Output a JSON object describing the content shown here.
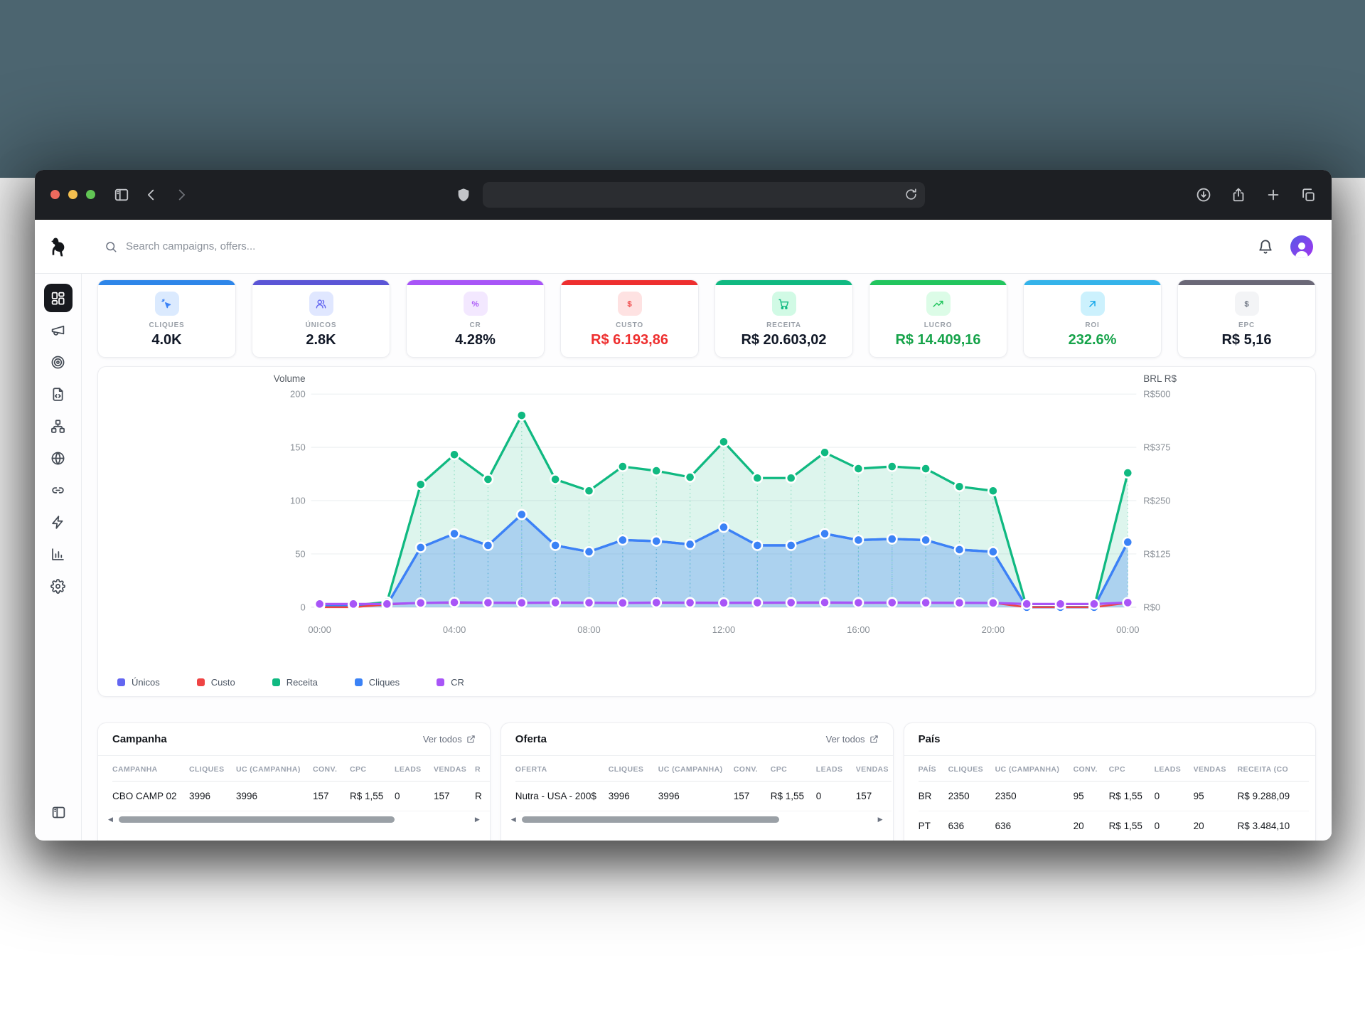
{
  "browser": {
    "traffic_lights": [
      "close-button",
      "minimize-button",
      "zoom-button"
    ],
    "left_icons": [
      "panel-left-icon",
      "chevron-left-icon",
      "chevron-right-icon",
      "shield-icon"
    ],
    "address_bar": {
      "url": "",
      "trailing_icon": "reload-icon"
    },
    "right_icons": [
      "download-icon",
      "share-icon",
      "plus-icon",
      "tabs-icon"
    ]
  },
  "header": {
    "logo_icon": "dog-logo-icon",
    "search": {
      "placeholder": "Search campaigns, offers...",
      "icon": "search-icon"
    },
    "right_icons": [
      "bell-icon",
      "avatar"
    ]
  },
  "sidebar": {
    "items": [
      {
        "name": "dashboard",
        "icon": "layout-dashboard-icon",
        "active": true
      },
      {
        "name": "campaigns",
        "icon": "megaphone-icon",
        "active": false
      },
      {
        "name": "offers",
        "icon": "target-icon",
        "active": false
      },
      {
        "name": "landing-pages",
        "icon": "file-code-icon",
        "active": false
      },
      {
        "name": "funnels",
        "icon": "network-icon",
        "active": false
      },
      {
        "name": "domains",
        "icon": "globe-icon",
        "active": false
      },
      {
        "name": "links",
        "icon": "link-icon",
        "active": false
      },
      {
        "name": "automations",
        "icon": "zap-icon",
        "active": false
      },
      {
        "name": "reports",
        "icon": "bar-chart-icon",
        "active": false
      },
      {
        "name": "settings",
        "icon": "gear-icon",
        "active": false
      }
    ],
    "bottom_icon": "panel-left-icon"
  },
  "kpis": [
    {
      "label": "CLIQUES",
      "value": "4.0K",
      "accent": "#2e86e9",
      "icon": "cursor-click-icon",
      "icon_bg": "#dbeafe",
      "icon_color": "#3b82f6",
      "value_color": "#111827"
    },
    {
      "label": "ÚNICOS",
      "value": "2.8K",
      "accent": "#5b55d6",
      "icon": "users-icon",
      "icon_bg": "#e0e7ff",
      "icon_color": "#6366f1",
      "value_color": "#111827"
    },
    {
      "label": "CR",
      "value": "4.28%",
      "accent": "#a855f7",
      "icon": "percent-icon",
      "icon_bg": "#f3e8ff",
      "icon_color": "#a855f7",
      "value_color": "#111827"
    },
    {
      "label": "CUSTO",
      "value": "R$ 6.193,86",
      "accent": "#ee2f2f",
      "icon": "dollar-icon",
      "icon_bg": "#fee2e2",
      "icon_color": "#ef4444",
      "value_color": "#ee2f2f"
    },
    {
      "label": "RECEITA",
      "value": "R$ 20.603,02",
      "accent": "#10b981",
      "icon": "cart-icon",
      "icon_bg": "#d1fae5",
      "icon_color": "#10b981",
      "value_color": "#111827"
    },
    {
      "label": "LUCRO",
      "value": "R$ 14.409,16",
      "accent": "#22c55e",
      "icon": "trending-up-icon",
      "icon_bg": "#dcfce7",
      "icon_color": "#22c55e",
      "value_color": "#16a34a"
    },
    {
      "label": "ROI",
      "value": "232.6%",
      "accent": "#34b3ea",
      "icon": "arrow-up-right-icon",
      "icon_bg": "#ccf1fd",
      "icon_color": "#0ea5e9",
      "value_color": "#16a34a"
    },
    {
      "label": "EPC",
      "value": "R$ 5,16",
      "accent": "#6b6877",
      "icon": "dollar-icon",
      "icon_bg": "#f3f4f6",
      "icon_color": "#6b7280",
      "value_color": "#111827"
    }
  ],
  "chart_data": {
    "type": "line",
    "x": [
      "00:00",
      "01:00",
      "02:00",
      "03:00",
      "04:00",
      "05:00",
      "06:00",
      "07:00",
      "08:00",
      "09:00",
      "10:00",
      "11:00",
      "12:00",
      "13:00",
      "14:00",
      "15:00",
      "16:00",
      "17:00",
      "18:00",
      "19:00",
      "20:00",
      "21:00",
      "22:00",
      "23:00",
      "00:00"
    ],
    "x_tick_indices": [
      0,
      4,
      8,
      12,
      16,
      20,
      24
    ],
    "left_axis": {
      "label": "Volume",
      "ticks": [
        0,
        50,
        100,
        150,
        200
      ],
      "range": [
        0,
        200
      ]
    },
    "right_axis": {
      "label": "BRL R$",
      "ticks": [
        "R$0",
        "R$125",
        "R$250",
        "R$375",
        "R$500"
      ],
      "range": [
        0,
        500
      ]
    },
    "grid": true,
    "legend_position": "bottom-left",
    "series": [
      {
        "name": "Únicos",
        "color": "#6366f1",
        "axis": "left",
        "fill": false,
        "dots": false,
        "values": [
          2,
          2,
          2,
          56,
          69,
          58,
          87,
          58,
          52,
          63,
          62,
          59,
          75,
          58,
          58,
          69,
          63,
          64,
          63,
          54,
          52,
          0,
          0,
          0,
          61
        ]
      },
      {
        "name": "Custo",
        "color": "#ef4444",
        "axis": "right",
        "fill": false,
        "dots": false,
        "values": [
          0,
          0,
          6,
          10,
          10,
          10,
          10,
          10,
          10,
          10,
          10,
          10,
          10,
          10,
          10,
          10,
          10,
          10,
          10,
          10,
          10,
          0,
          0,
          0,
          10
        ]
      },
      {
        "name": "Receita",
        "color": "#10b981",
        "axis": "right",
        "fill": true,
        "dots": true,
        "values": [
          4,
          4,
          12,
          288,
          358,
          300,
          450,
          300,
          273,
          330,
          320,
          305,
          388,
          303,
          303,
          363,
          325,
          330,
          325,
          283,
          273,
          0,
          0,
          0,
          315
        ]
      },
      {
        "name": "Cliques",
        "color": "#3b82f6",
        "axis": "left",
        "fill": true,
        "dots": true,
        "values": [
          2,
          2,
          2,
          56,
          69,
          58,
          87,
          58,
          52,
          63,
          62,
          59,
          75,
          58,
          58,
          69,
          63,
          64,
          63,
          54,
          52,
          0,
          0,
          0,
          61
        ]
      },
      {
        "name": "CR",
        "color": "#a855f7",
        "axis": "left",
        "fill": false,
        "dots": true,
        "values": [
          3,
          3,
          3,
          4,
          4.5,
          4.2,
          4.1,
          4.3,
          4.2,
          4,
          4.3,
          4.2,
          4.1,
          4.2,
          4.3,
          4.4,
          4.2,
          4.3,
          4.2,
          4.1,
          4,
          3,
          3,
          3,
          4.3
        ]
      }
    ]
  },
  "tables": [
    {
      "title": "Campanha",
      "link_label": "Ver todos",
      "link_icon": "external-link-icon",
      "columns": [
        "CAMPANHA",
        "CLIQUES",
        "UC (CAMPANHA)",
        "CONV.",
        "CPC",
        "LEADS",
        "VENDAS",
        "R"
      ],
      "rows": [
        [
          "CBO CAMP 02",
          "3996",
          "3996",
          "157",
          "R$ 1,55",
          "0",
          "157",
          "R"
        ]
      ],
      "scrollbar": true,
      "thumb": 0.78
    },
    {
      "title": "Oferta",
      "link_label": "Ver todos",
      "link_icon": "external-link-icon",
      "columns": [
        "OFERTA",
        "CLIQUES",
        "UC (CAMPANHA)",
        "CONV.",
        "CPC",
        "LEADS",
        "VENDAS"
      ],
      "rows": [
        [
          "Nutra - USA - 200$",
          "3996",
          "3996",
          "157",
          "R$ 1,55",
          "0",
          "157"
        ]
      ],
      "scrollbar": true,
      "thumb": 0.73
    },
    {
      "title": "País",
      "link_label": "",
      "link_icon": "",
      "columns": [
        "PAÍS",
        "CLIQUES",
        "UC (CAMPANHA)",
        "CONV.",
        "CPC",
        "LEADS",
        "VENDAS",
        "RECEITA (CO"
      ],
      "rows": [
        [
          "BR",
          "2350",
          "2350",
          "95",
          "R$ 1,55",
          "0",
          "95",
          "R$ 9.288,09"
        ],
        [
          "PT",
          "636",
          "636",
          "20",
          "R$ 1,55",
          "0",
          "20",
          "R$ 3.484,10"
        ]
      ],
      "scrollbar": false,
      "thumb": 0
    }
  ]
}
